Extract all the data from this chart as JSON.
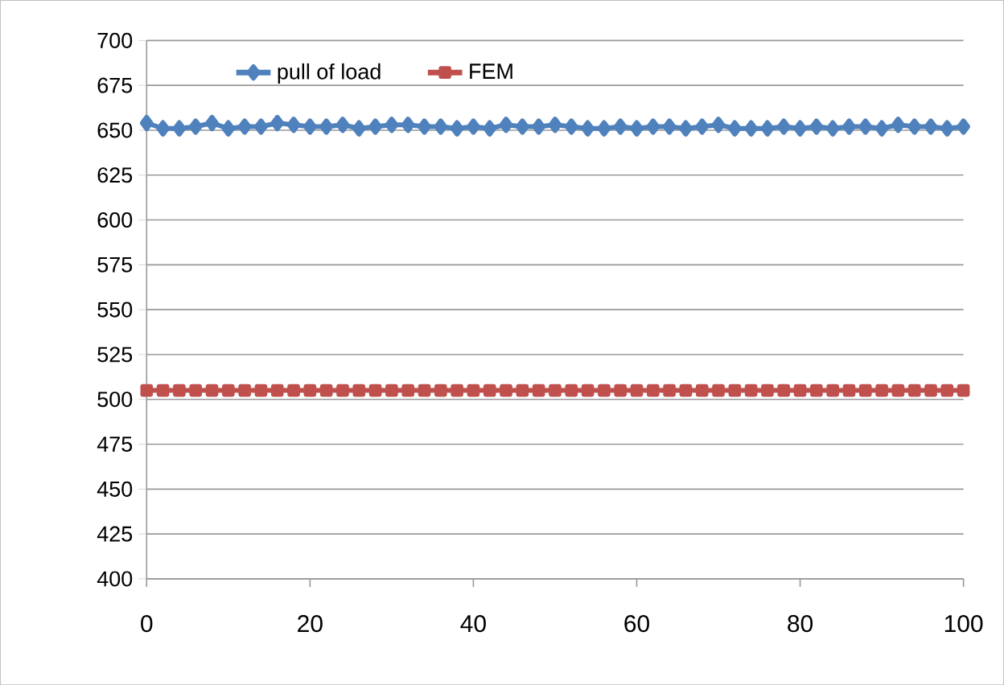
{
  "chart_data": {
    "type": "line",
    "x": [
      0,
      2,
      4,
      6,
      8,
      10,
      12,
      14,
      16,
      18,
      20,
      22,
      24,
      26,
      28,
      30,
      32,
      34,
      36,
      38,
      40,
      42,
      44,
      46,
      48,
      50,
      52,
      54,
      56,
      58,
      60,
      62,
      64,
      66,
      68,
      70,
      72,
      74,
      76,
      78,
      80,
      82,
      84,
      86,
      88,
      90,
      92,
      94,
      96,
      98,
      100
    ],
    "series": [
      {
        "name": "pull of load",
        "color": "#4f81bd",
        "marker": "diamond",
        "values": [
          654,
          651,
          651,
          652,
          654,
          651,
          652,
          652,
          654,
          653,
          652,
          652,
          653,
          651,
          652,
          653,
          653,
          652,
          652,
          651,
          652,
          651,
          653,
          652,
          652,
          653,
          652,
          651,
          651,
          652,
          651,
          652,
          652,
          651,
          652,
          653,
          651,
          651,
          651,
          652,
          651,
          652,
          651,
          652,
          652,
          651,
          653,
          652,
          652,
          651,
          652
        ]
      },
      {
        "name": "FEM",
        "color": "#c0504d",
        "marker": "square",
        "values": [
          505,
          505,
          505,
          505,
          505,
          505,
          505,
          505,
          505,
          505,
          505,
          505,
          505,
          505,
          505,
          505,
          505,
          505,
          505,
          505,
          505,
          505,
          505,
          505,
          505,
          505,
          505,
          505,
          505,
          505,
          505,
          505,
          505,
          505,
          505,
          505,
          505,
          505,
          505,
          505,
          505,
          505,
          505,
          505,
          505,
          505,
          505,
          505,
          505,
          505,
          505
        ]
      }
    ],
    "xlim": [
      0,
      100
    ],
    "xticks": [
      0,
      20,
      40,
      60,
      80,
      100
    ],
    "ylim": [
      400,
      700
    ],
    "yticks": [
      400,
      425,
      450,
      475,
      500,
      525,
      550,
      575,
      600,
      625,
      650,
      675,
      700
    ],
    "grid": "y",
    "legend": "top"
  }
}
